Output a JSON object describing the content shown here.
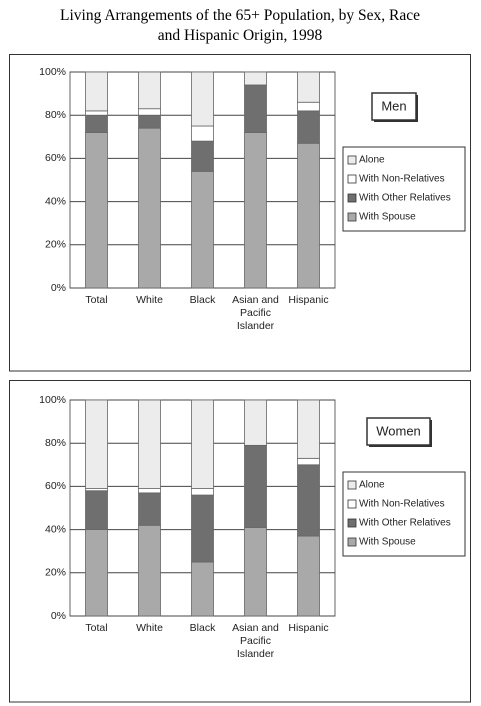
{
  "title": "Living Arrangements of the 65+ Population, by Sex, Race and Hispanic Origin, 1998",
  "chart_data": [
    {
      "type": "stacked_bar",
      "title": "Men",
      "categories": [
        "Total",
        "White",
        "Black",
        "Asian and Pacific Islander",
        "Hispanic"
      ],
      "series": [
        {
          "name": "With Spouse",
          "color": "#a9a9a9",
          "values": [
            72,
            74,
            54,
            72,
            67
          ]
        },
        {
          "name": "With Other Relatives",
          "color": "#6f6f6f",
          "values": [
            8,
            6,
            14,
            22,
            15
          ]
        },
        {
          "name": "With Non-Relatives",
          "color": "#ffffff",
          "values": [
            2,
            3,
            7,
            0,
            4
          ]
        },
        {
          "name": "Alone",
          "color": "#ececec",
          "values": [
            18,
            17,
            25,
            6,
            14
          ]
        }
      ],
      "ylim": [
        0,
        100
      ],
      "yticks": [
        {
          "value": 0,
          "label": "0%"
        },
        {
          "value": 20,
          "label": "20%"
        },
        {
          "value": 40,
          "label": "40%"
        },
        {
          "value": 60,
          "label": "60%"
        },
        {
          "value": 80,
          "label": "80%"
        },
        {
          "value": 100,
          "label": "100%"
        }
      ],
      "grid": true
    },
    {
      "type": "stacked_bar",
      "title": "Women",
      "categories": [
        "Total",
        "White",
        "Black",
        "Asian and Pacific Islander",
        "Hispanic"
      ],
      "series": [
        {
          "name": "With Spouse",
          "color": "#a9a9a9",
          "values": [
            40,
            42,
            25,
            41,
            37
          ]
        },
        {
          "name": "With Other Relatives",
          "color": "#6f6f6f",
          "values": [
            18,
            15,
            31,
            38,
            33
          ]
        },
        {
          "name": "With Non-Relatives",
          "color": "#ffffff",
          "values": [
            1,
            2,
            3,
            0,
            3
          ]
        },
        {
          "name": "Alone",
          "color": "#ececec",
          "values": [
            41,
            41,
            41,
            21,
            27
          ]
        }
      ],
      "ylim": [
        0,
        100
      ],
      "yticks": [
        {
          "value": 0,
          "label": "0%"
        },
        {
          "value": 20,
          "label": "20%"
        },
        {
          "value": 40,
          "label": "40%"
        },
        {
          "value": 60,
          "label": "60%"
        },
        {
          "value": 80,
          "label": "80%"
        },
        {
          "value": 100,
          "label": "100%"
        }
      ],
      "grid": true
    }
  ]
}
